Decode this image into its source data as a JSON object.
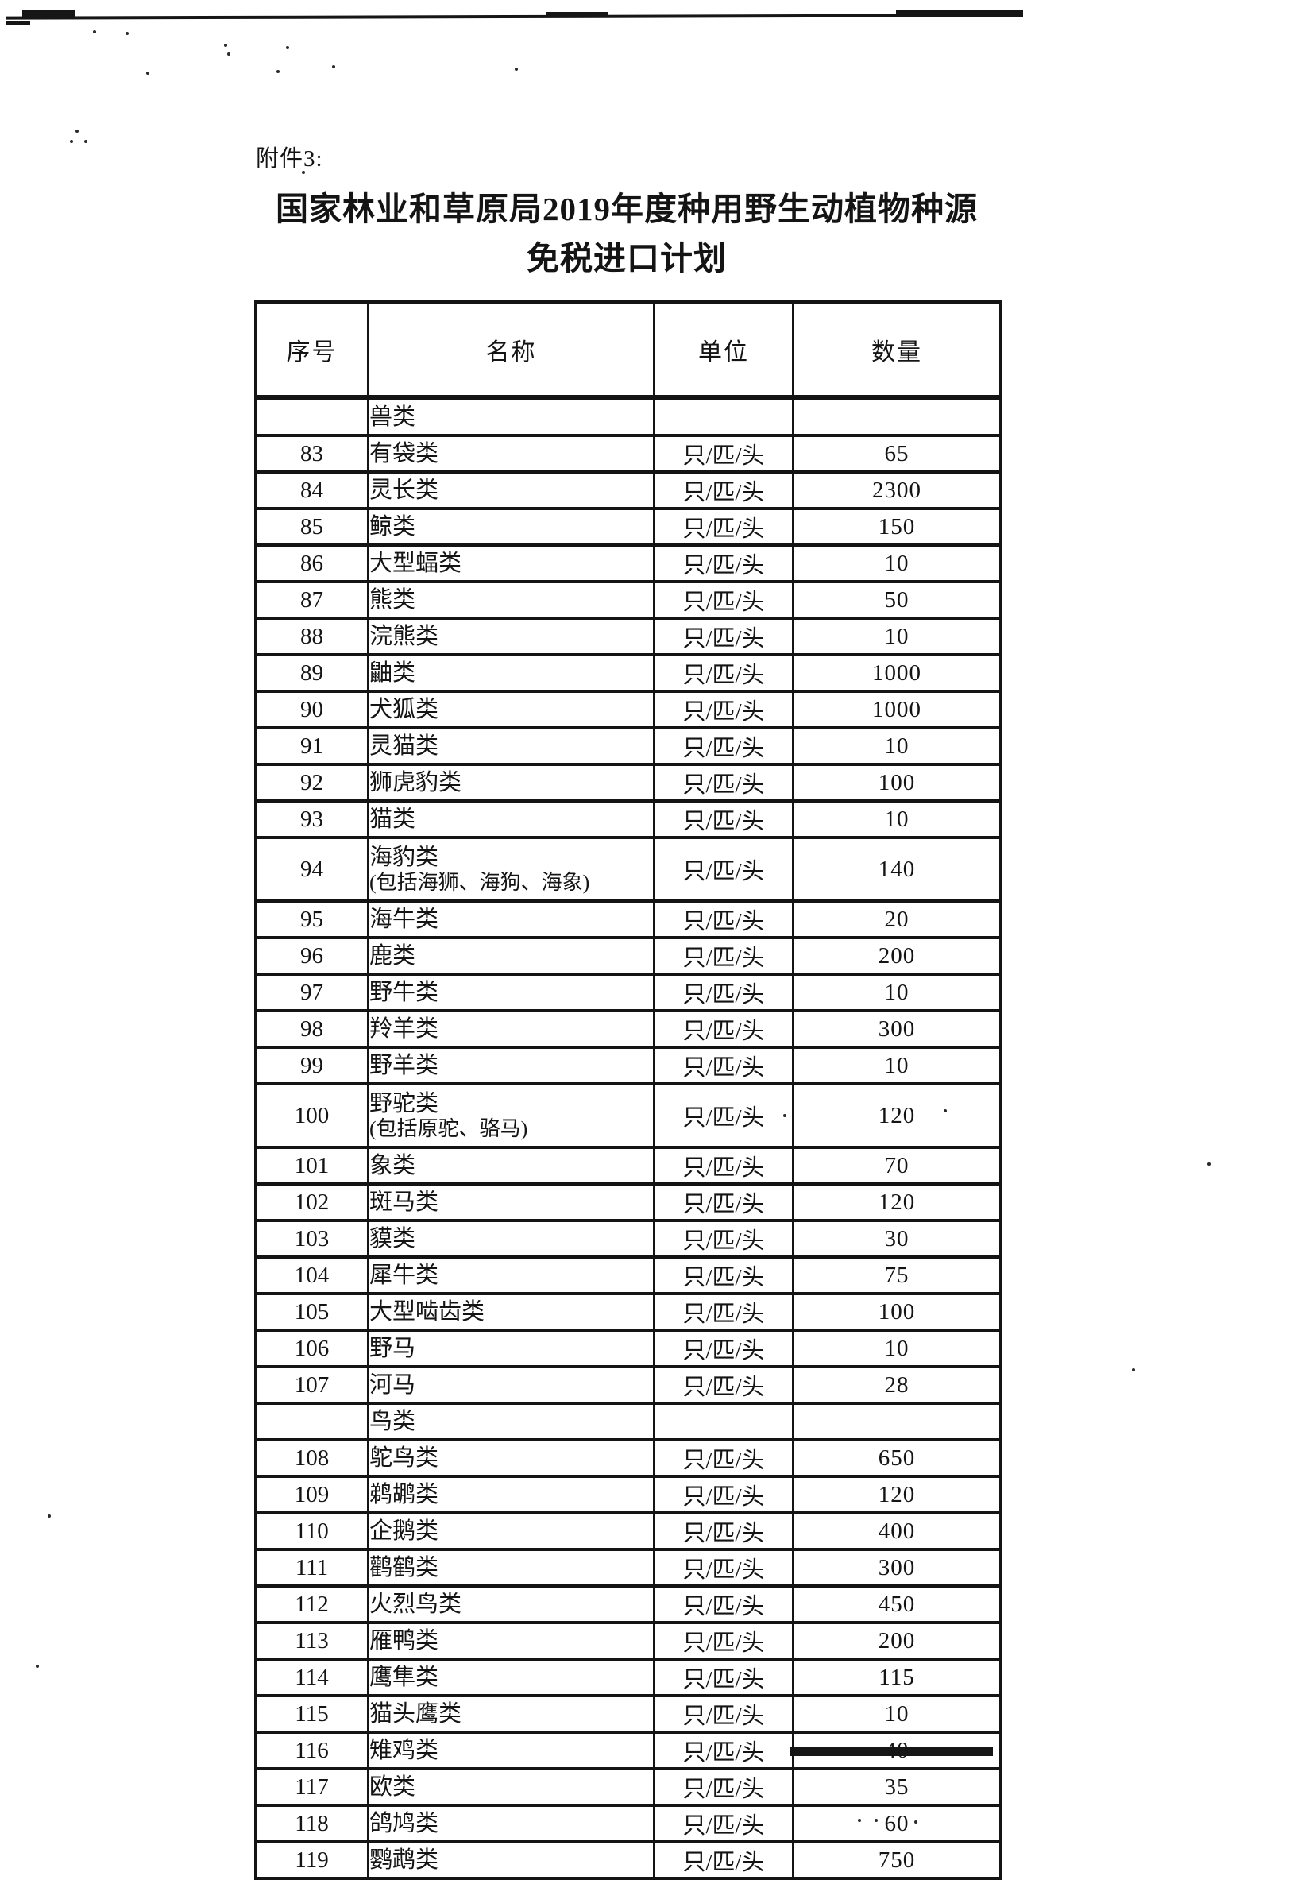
{
  "document": {
    "attachment_label": "附件3:",
    "title_line1": "国家林业和草原局2019年度种用野生动植物种源",
    "title_line2": "免税进口计划"
  },
  "table": {
    "headers": [
      "序号",
      "名称",
      "单位",
      "数量"
    ],
    "rows": [
      {
        "no": "",
        "name": "兽类",
        "name2": "",
        "unit": "",
        "qty": ""
      },
      {
        "no": "83",
        "name": "有袋类",
        "name2": "",
        "unit": "只/匹/头",
        "qty": "65"
      },
      {
        "no": "84",
        "name": "灵长类",
        "name2": "",
        "unit": "只/匹/头",
        "qty": "2300"
      },
      {
        "no": "85",
        "name": "鲸类",
        "name2": "",
        "unit": "只/匹/头",
        "qty": "150"
      },
      {
        "no": "86",
        "name": "大型蝠类",
        "name2": "",
        "unit": "只/匹/头",
        "qty": "10"
      },
      {
        "no": "87",
        "name": "熊类",
        "name2": "",
        "unit": "只/匹/头",
        "qty": "50"
      },
      {
        "no": "88",
        "name": "浣熊类",
        "name2": "",
        "unit": "只/匹/头",
        "qty": "10"
      },
      {
        "no": "89",
        "name": "鼬类",
        "name2": "",
        "unit": "只/匹/头",
        "qty": "1000"
      },
      {
        "no": "90",
        "name": "犬狐类",
        "name2": "",
        "unit": "只/匹/头",
        "qty": "1000"
      },
      {
        "no": "91",
        "name": "灵猫类",
        "name2": "",
        "unit": "只/匹/头",
        "qty": "10"
      },
      {
        "no": "92",
        "name": "狮虎豹类",
        "name2": "",
        "unit": "只/匹/头",
        "qty": "100"
      },
      {
        "no": "93",
        "name": "猫类",
        "name2": "",
        "unit": "只/匹/头",
        "qty": "10"
      },
      {
        "no": "94",
        "name": "海豹类",
        "name2": "(包括海狮、海狗、海象)",
        "unit": "只/匹/头",
        "qty": "140"
      },
      {
        "no": "95",
        "name": "海牛类",
        "name2": "",
        "unit": "只/匹/头",
        "qty": "20"
      },
      {
        "no": "96",
        "name": "鹿类",
        "name2": "",
        "unit": "只/匹/头",
        "qty": "200"
      },
      {
        "no": "97",
        "name": "野牛类",
        "name2": "",
        "unit": "只/匹/头",
        "qty": "10"
      },
      {
        "no": "98",
        "name": "羚羊类",
        "name2": "",
        "unit": "只/匹/头",
        "qty": "300"
      },
      {
        "no": "99",
        "name": "野羊类",
        "name2": "",
        "unit": "只/匹/头",
        "qty": "10"
      },
      {
        "no": "100",
        "name": "野驼类",
        "name2": "(包括原驼、骆马)",
        "unit": "只/匹/头",
        "qty": "120"
      },
      {
        "no": "101",
        "name": "象类",
        "name2": "",
        "unit": "只/匹/头",
        "qty": "70"
      },
      {
        "no": "102",
        "name": "斑马类",
        "name2": "",
        "unit": "只/匹/头",
        "qty": "120"
      },
      {
        "no": "103",
        "name": "貘类",
        "name2": "",
        "unit": "只/匹/头",
        "qty": "30"
      },
      {
        "no": "104",
        "name": "犀牛类",
        "name2": "",
        "unit": "只/匹/头",
        "qty": "75"
      },
      {
        "no": "105",
        "name": "大型啮齿类",
        "name2": "",
        "unit": "只/匹/头",
        "qty": "100"
      },
      {
        "no": "106",
        "name": "野马",
        "name2": "",
        "unit": "只/匹/头",
        "qty": "10"
      },
      {
        "no": "107",
        "name": "河马",
        "name2": "",
        "unit": "只/匹/头",
        "qty": "28"
      },
      {
        "no": "",
        "name": "鸟类",
        "name2": "",
        "unit": "",
        "qty": ""
      },
      {
        "no": "108",
        "name": "鸵鸟类",
        "name2": "",
        "unit": "只/匹/头",
        "qty": "650"
      },
      {
        "no": "109",
        "name": "鹈鹕类",
        "name2": "",
        "unit": "只/匹/头",
        "qty": "120"
      },
      {
        "no": "110",
        "name": "企鹅类",
        "name2": "",
        "unit": "只/匹/头",
        "qty": "400"
      },
      {
        "no": "111",
        "name": "鹳鹤类",
        "name2": "",
        "unit": "只/匹/头",
        "qty": "300"
      },
      {
        "no": "112",
        "name": "火烈鸟类",
        "name2": "",
        "unit": "只/匹/头",
        "qty": "450"
      },
      {
        "no": "113",
        "name": "雁鸭类",
        "name2": "",
        "unit": "只/匹/头",
        "qty": "200"
      },
      {
        "no": "114",
        "name": "鹰隼类",
        "name2": "",
        "unit": "只/匹/头",
        "qty": "115"
      },
      {
        "no": "115",
        "name": "猫头鹰类",
        "name2": "",
        "unit": "只/匹/头",
        "qty": "10"
      },
      {
        "no": "116",
        "name": "雉鸡类",
        "name2": "",
        "unit": "只/匹/头",
        "qty": "40"
      },
      {
        "no": "117",
        "name": "欧类",
        "name2": "",
        "unit": "只/匹/头",
        "qty": "35"
      },
      {
        "no": "118",
        "name": "鸽鸠类",
        "name2": "",
        "unit": "只/匹/头",
        "qty": "60"
      },
      {
        "no": "119",
        "name": "鹦鹉类",
        "name2": "",
        "unit": "只/匹/头",
        "qty": "750"
      }
    ]
  },
  "colors": {
    "ink": "#141414",
    "paper": "#ffffff"
  }
}
